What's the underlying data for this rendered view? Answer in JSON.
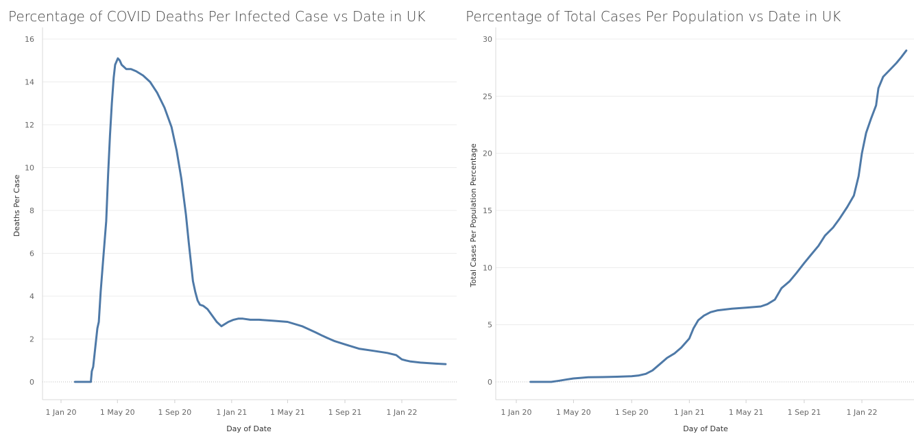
{
  "chart_data": [
    {
      "type": "line",
      "title": "Percentage of COVID Deaths Per Infected Case vs Date in UK",
      "xlabel": "Day of Date",
      "ylabel": "Deaths Per Case",
      "ylim": [
        0,
        16
      ],
      "yticks": [
        0,
        2,
        4,
        6,
        8,
        10,
        12,
        14,
        16
      ],
      "xticks": [
        {
          "date": "2020-01-01",
          "label": "1 Jan 20"
        },
        {
          "date": "2020-05-01",
          "label": "1 May 20"
        },
        {
          "date": "2020-09-01",
          "label": "1 Sep 20"
        },
        {
          "date": "2021-01-01",
          "label": "1 Jan 21"
        },
        {
          "date": "2021-05-01",
          "label": "1 May 21"
        },
        {
          "date": "2021-09-01",
          "label": "1 Sep 21"
        },
        {
          "date": "2022-01-01",
          "label": "1 Jan 22"
        }
      ],
      "grid": "horizontal",
      "color": "#4e79a7",
      "series": [
        {
          "x": [
            "2020-01-31",
            "2020-02-20",
            "2020-03-05",
            "2020-03-07",
            "2020-03-10",
            "2020-03-14",
            "2020-03-19",
            "2020-03-22",
            "2020-03-26",
            "2020-03-31",
            "2020-04-07",
            "2020-04-11",
            "2020-04-15",
            "2020-04-19",
            "2020-04-23",
            "2020-04-26",
            "2020-05-02",
            "2020-05-06",
            "2020-05-10",
            "2020-05-15",
            "2020-05-20",
            "2020-05-30",
            "2020-06-10",
            "2020-06-25",
            "2020-07-10",
            "2020-07-25",
            "2020-08-10",
            "2020-08-25",
            "2020-09-05",
            "2020-09-15",
            "2020-09-25",
            "2020-10-01",
            "2020-10-06",
            "2020-10-10",
            "2020-10-15",
            "2020-10-20",
            "2020-10-25",
            "2020-11-01",
            "2020-11-10",
            "2020-11-20",
            "2020-11-30",
            "2020-12-10",
            "2020-12-25",
            "2021-01-05",
            "2021-01-15",
            "2021-01-25",
            "2021-02-10",
            "2021-03-01",
            "2021-04-01",
            "2021-05-01",
            "2021-06-01",
            "2021-07-01",
            "2021-07-15",
            "2021-07-25",
            "2021-08-10",
            "2021-09-01",
            "2021-10-01",
            "2021-11-01",
            "2021-12-01",
            "2021-12-20",
            "2022-01-01",
            "2022-01-10",
            "2022-01-20",
            "2022-02-10",
            "2022-03-15",
            "2022-04-05"
          ],
          "values": [
            0,
            0,
            0,
            0.5,
            0.7,
            1.5,
            2.5,
            2.8,
            4.2,
            5.6,
            7.5,
            9.7,
            11.5,
            13.0,
            14.2,
            14.8,
            15.1,
            15.0,
            14.8,
            14.7,
            14.6,
            14.6,
            14.5,
            14.3,
            14.0,
            13.5,
            12.8,
            11.9,
            10.8,
            9.5,
            7.8,
            6.5,
            5.5,
            4.7,
            4.2,
            3.8,
            3.6,
            3.55,
            3.4,
            3.1,
            2.8,
            2.6,
            2.8,
            2.9,
            2.95,
            2.95,
            2.9,
            2.9,
            2.85,
            2.8,
            2.6,
            2.3,
            2.15,
            2.05,
            1.9,
            1.75,
            1.55,
            1.45,
            1.35,
            1.25,
            1.05,
            1.0,
            0.95,
            0.9,
            0.85,
            0.83
          ]
        }
      ]
    },
    {
      "type": "line",
      "title": "Percentage of Total Cases Per Population vs Date in UK",
      "xlabel": "Day of Date",
      "ylabel": "Total Cases Per Population Percentage",
      "ylim": [
        0,
        30
      ],
      "yticks": [
        0,
        5,
        10,
        15,
        20,
        25,
        30
      ],
      "xticks": [
        {
          "date": "2020-01-01",
          "label": "1 Jan 20"
        },
        {
          "date": "2020-05-01",
          "label": "1 May 20"
        },
        {
          "date": "2020-09-01",
          "label": "1 Sep 20"
        },
        {
          "date": "2021-01-01",
          "label": "1 Jan 21"
        },
        {
          "date": "2021-05-01",
          "label": "1 May 21"
        },
        {
          "date": "2021-09-01",
          "label": "1 Sep 21"
        },
        {
          "date": "2022-01-01",
          "label": "1 Jan 22"
        }
      ],
      "grid": "horizontal",
      "color": "#4e79a7",
      "series": [
        {
          "x": [
            "2020-01-31",
            "2020-03-01",
            "2020-03-15",
            "2020-04-01",
            "2020-04-15",
            "2020-05-01",
            "2020-05-15",
            "2020-06-01",
            "2020-07-01",
            "2020-08-01",
            "2020-09-01",
            "2020-09-15",
            "2020-10-01",
            "2020-10-15",
            "2020-11-01",
            "2020-11-15",
            "2020-12-01",
            "2020-12-15",
            "2021-01-01",
            "2021-01-10",
            "2021-01-20",
            "2021-02-01",
            "2021-02-15",
            "2021-03-01",
            "2021-04-01",
            "2021-05-01",
            "2021-06-01",
            "2021-06-15",
            "2021-07-01",
            "2021-07-15",
            "2021-08-01",
            "2021-08-15",
            "2021-09-01",
            "2021-09-15",
            "2021-10-01",
            "2021-10-15",
            "2021-11-01",
            "2021-11-15",
            "2021-12-01",
            "2021-12-15",
            "2021-12-25",
            "2022-01-01",
            "2022-01-10",
            "2022-01-20",
            "2022-01-31",
            "2022-02-05",
            "2022-02-15",
            "2022-03-01",
            "2022-03-15",
            "2022-03-25",
            "2022-04-05"
          ],
          "values": [
            0,
            0,
            0,
            0.1,
            0.2,
            0.3,
            0.35,
            0.4,
            0.42,
            0.45,
            0.5,
            0.55,
            0.7,
            1.0,
            1.6,
            2.1,
            2.5,
            3.0,
            3.8,
            4.7,
            5.4,
            5.8,
            6.1,
            6.25,
            6.4,
            6.5,
            6.6,
            6.8,
            7.2,
            8.2,
            8.8,
            9.5,
            10.4,
            11.1,
            11.9,
            12.8,
            13.5,
            14.3,
            15.3,
            16.3,
            18.0,
            20.0,
            21.8,
            23.0,
            24.2,
            25.7,
            26.7,
            27.3,
            27.9,
            28.4,
            29.0
          ]
        }
      ]
    }
  ]
}
